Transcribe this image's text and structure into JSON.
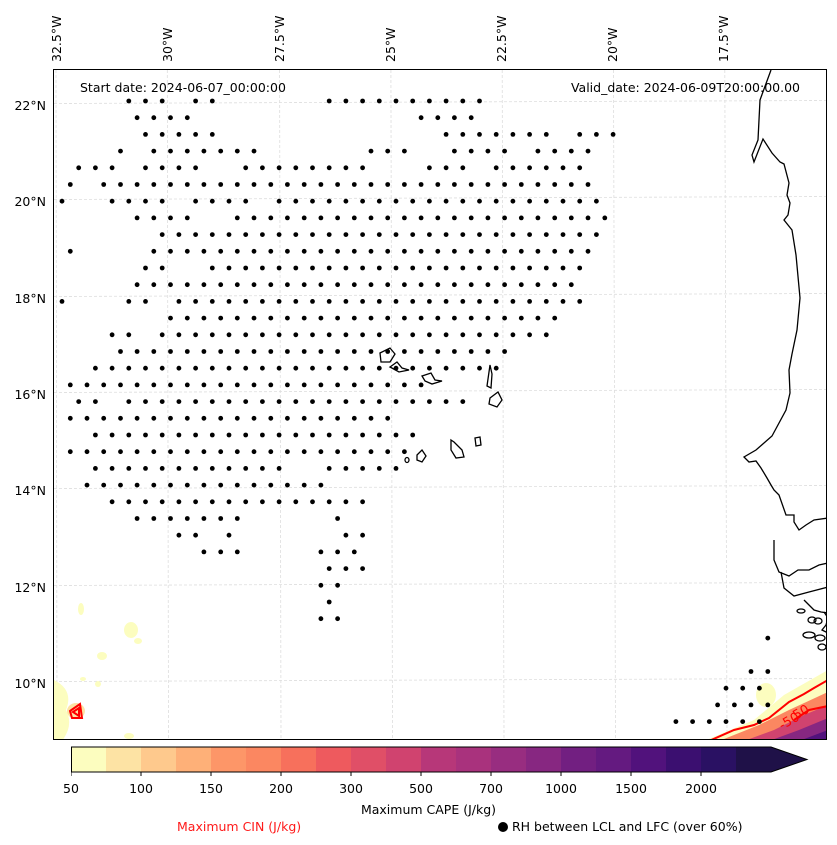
{
  "map": {
    "start_date": "Start date: 2024-06-07_00:00:00",
    "valid_date": "Valid_date: 2024-06-09T20:00:00.00",
    "longitude_labels": [
      "32.5°W",
      "30°W",
      "27.5°W",
      "25°W",
      "22.5°W",
      "20°W",
      "17.5°W"
    ],
    "latitude_labels": [
      "22°N",
      "20°N",
      "18°N",
      "16°N",
      "14°N",
      "12°N",
      "10°N"
    ],
    "extent": {
      "lon_min": -32.6,
      "lon_max": -15.1,
      "lat_min": 8.9,
      "lat_max": 22.7
    },
    "gridlines": true,
    "coastline_color": "#000000",
    "cin_contour_color": "#ff0000",
    "cin_contour_labels": [
      "-50",
      "50"
    ],
    "rh_dot_color": "#000000",
    "rh_dot_rows": [
      {
        "row": 0,
        "cols": [
          [
            4,
            6
          ],
          [
            8,
            9
          ],
          [
            16,
            25
          ]
        ]
      },
      {
        "row": 1,
        "cols": [
          [
            5,
            8
          ],
          [
            22,
            25
          ]
        ]
      },
      {
        "row": 2,
        "cols": [
          [
            5,
            9
          ],
          [
            23,
            29
          ],
          [
            31,
            33
          ]
        ]
      },
      {
        "row": 3,
        "cols": [
          [
            4,
            4
          ],
          [
            6,
            12
          ],
          [
            19,
            21
          ],
          [
            24,
            27
          ],
          [
            29,
            32
          ]
        ]
      },
      {
        "row": 4,
        "cols": [
          [
            1,
            3
          ],
          [
            5,
            8
          ],
          [
            11,
            15
          ],
          [
            16,
            18
          ],
          [
            22,
            24
          ],
          [
            26,
            31
          ]
        ]
      },
      {
        "row": 5,
        "cols": [
          [
            1,
            1
          ],
          [
            3,
            32
          ]
        ]
      },
      {
        "row": 6,
        "cols": [
          [
            0,
            0
          ],
          [
            3,
            6
          ],
          [
            8,
            11
          ],
          [
            13,
            32
          ]
        ]
      },
      {
        "row": 7,
        "cols": [
          [
            5,
            8
          ],
          [
            11,
            33
          ]
        ]
      },
      {
        "row": 8,
        "cols": [
          [
            6,
            32
          ]
        ]
      },
      {
        "row": 9,
        "cols": [
          [
            1,
            1
          ],
          [
            6,
            32
          ]
        ]
      },
      {
        "row": 10,
        "cols": [
          [
            5,
            6
          ],
          [
            9,
            31
          ]
        ]
      },
      {
        "row": 11,
        "cols": [
          [
            5,
            31
          ]
        ]
      },
      {
        "row": 12,
        "cols": [
          [
            0,
            0
          ],
          [
            4,
            5
          ],
          [
            7,
            31
          ]
        ]
      },
      {
        "row": 13,
        "cols": [
          [
            7,
            30
          ]
        ]
      },
      {
        "row": 14,
        "cols": [
          [
            3,
            4
          ],
          [
            6,
            29
          ]
        ]
      },
      {
        "row": 15,
        "cols": [
          [
            4,
            27
          ]
        ]
      },
      {
        "row": 16,
        "cols": [
          [
            2,
            26
          ]
        ]
      },
      {
        "row": 17,
        "cols": [
          [
            1,
            22
          ]
        ]
      },
      {
        "row": 18,
        "cols": [
          [
            1,
            2
          ],
          [
            4,
            24
          ]
        ]
      },
      {
        "row": 19,
        "cols": [
          [
            1,
            20
          ]
        ]
      },
      {
        "row": 20,
        "cols": [
          [
            2,
            21
          ]
        ]
      },
      {
        "row": 21,
        "cols": [
          [
            1,
            21
          ]
        ]
      },
      {
        "row": 22,
        "cols": [
          [
            2,
            13
          ],
          [
            16,
            20
          ]
        ]
      },
      {
        "row": 23,
        "cols": [
          [
            2,
            16
          ]
        ]
      },
      {
        "row": 24,
        "cols": [
          [
            3,
            18
          ]
        ]
      },
      {
        "row": 25,
        "cols": [
          [
            5,
            11
          ],
          [
            17,
            17
          ]
        ]
      },
      {
        "row": 26,
        "cols": [
          [
            7,
            8
          ],
          [
            10,
            10
          ],
          [
            17,
            18
          ]
        ]
      },
      {
        "row": 27,
        "cols": [
          [
            9,
            11
          ],
          [
            16,
            18
          ]
        ]
      },
      {
        "row": 28,
        "cols": [
          [
            16,
            18
          ]
        ]
      },
      {
        "row": 29,
        "cols": [
          [
            16,
            17
          ]
        ]
      },
      {
        "row": 30,
        "cols": [
          [
            16,
            16
          ]
        ]
      },
      {
        "row": 31,
        "cols": [
          [
            16,
            17
          ]
        ]
      }
    ],
    "rh_dot_rows_se": [
      {
        "row": 33,
        "cols": [
          [
            42,
            42
          ]
        ]
      },
      {
        "row": 35,
        "cols": [
          [
            41,
            42
          ]
        ]
      },
      {
        "row": 36,
        "cols": [
          [
            40,
            42
          ]
        ]
      },
      {
        "row": 37,
        "cols": [
          [
            39,
            42
          ]
        ]
      },
      {
        "row": 38,
        "cols": [
          [
            37,
            42
          ]
        ]
      }
    ]
  },
  "colorbar": {
    "title": "Maximum CAPE (J/kg)",
    "tick_labels": [
      "50",
      "100",
      "150",
      "200",
      "300",
      "500",
      "700",
      "1000",
      "1500",
      "2000"
    ],
    "levels": [
      50,
      75,
      100,
      125,
      150,
      175,
      200,
      250,
      300,
      400,
      500,
      600,
      700,
      850,
      1000,
      1250,
      1500,
      1750,
      2000
    ],
    "colors": [
      "#fcfdbf",
      "#fde3a4",
      "#fec98d",
      "#feb078",
      "#fd9668",
      "#fb8761",
      "#f7705c",
      "#ee5a5e",
      "#e04f67",
      "#d0436f",
      "#b73779",
      "#a9327d",
      "#982d80",
      "#872781",
      "#721f81",
      "#641a80",
      "#51127c",
      "#3b0f70",
      "#2a1163",
      "#1f1148"
    ],
    "extend": "max"
  },
  "legend": {
    "cin_label": "Maximum CIN (J/kg)",
    "rh_label": "RH between LCL and LFC (over 60%)"
  }
}
